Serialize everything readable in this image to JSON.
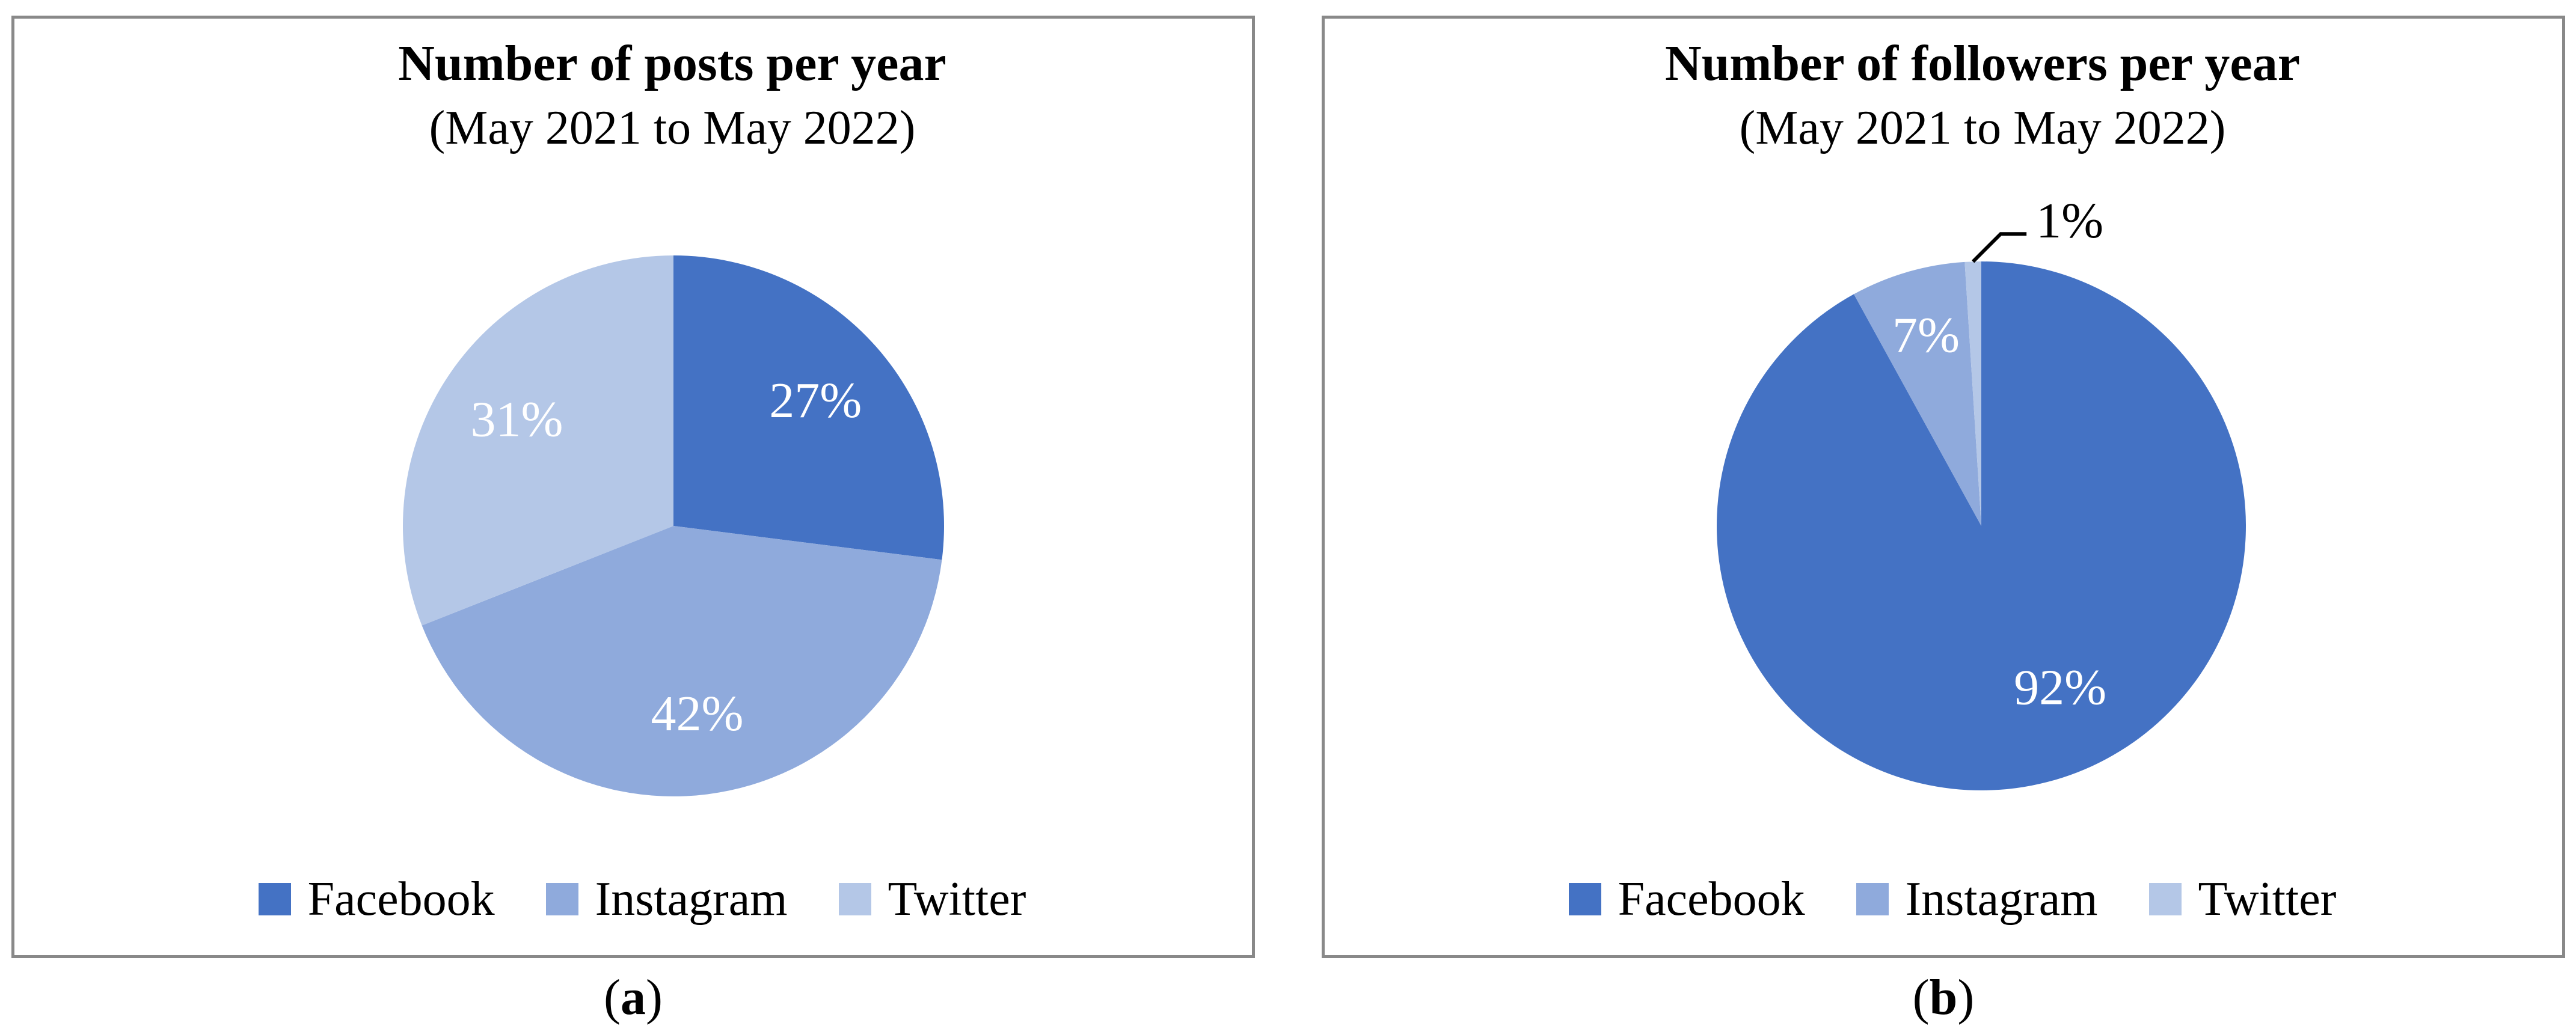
{
  "colors": {
    "facebook": "#4472C4",
    "instagram": "#8FAADC",
    "twitter": "#B4C7E7",
    "panel_border": "#898989",
    "slice_label_text": "#FFFFFF",
    "callout_text": "#000000",
    "callout_line": "#000000",
    "title_text": "#000000",
    "legend_text": "#000000"
  },
  "chart_data": [
    {
      "type": "pie",
      "title": "Number of posts per year",
      "subtitle": "(May 2021 to May 2022)",
      "categories": [
        "Facebook",
        "Instagram",
        "Twitter"
      ],
      "values": [
        27,
        42,
        31
      ],
      "labels": [
        "27%",
        "42%",
        "31%"
      ],
      "colors": [
        "#4472C4",
        "#8FAADC",
        "#B4C7E7"
      ],
      "start_angle_deg": 0,
      "direction": "clockwise",
      "legend_position": "bottom",
      "label_layout": [
        {
          "r": 0.7
        },
        {
          "r": 0.7
        },
        {
          "r": 0.7
        }
      ]
    },
    {
      "type": "pie",
      "title": "Number of followers per year",
      "subtitle": "(May 2021 to May 2022)",
      "categories": [
        "Facebook",
        "Instagram",
        "Twitter"
      ],
      "values": [
        92,
        7,
        1
      ],
      "labels": [
        "92%",
        "7%",
        "1%"
      ],
      "colors": [
        "#4472C4",
        "#8FAADC",
        "#B4C7E7"
      ],
      "start_angle_deg": 0,
      "direction": "clockwise",
      "legend_position": "bottom",
      "label_layout": [
        {
          "r": 0.68,
          "angle": 154
        },
        {
          "r": 0.75
        },
        {
          "outside": true
        }
      ]
    }
  ],
  "captions": {
    "open": "(",
    "a": "a",
    "b": "b",
    "close": ")"
  }
}
